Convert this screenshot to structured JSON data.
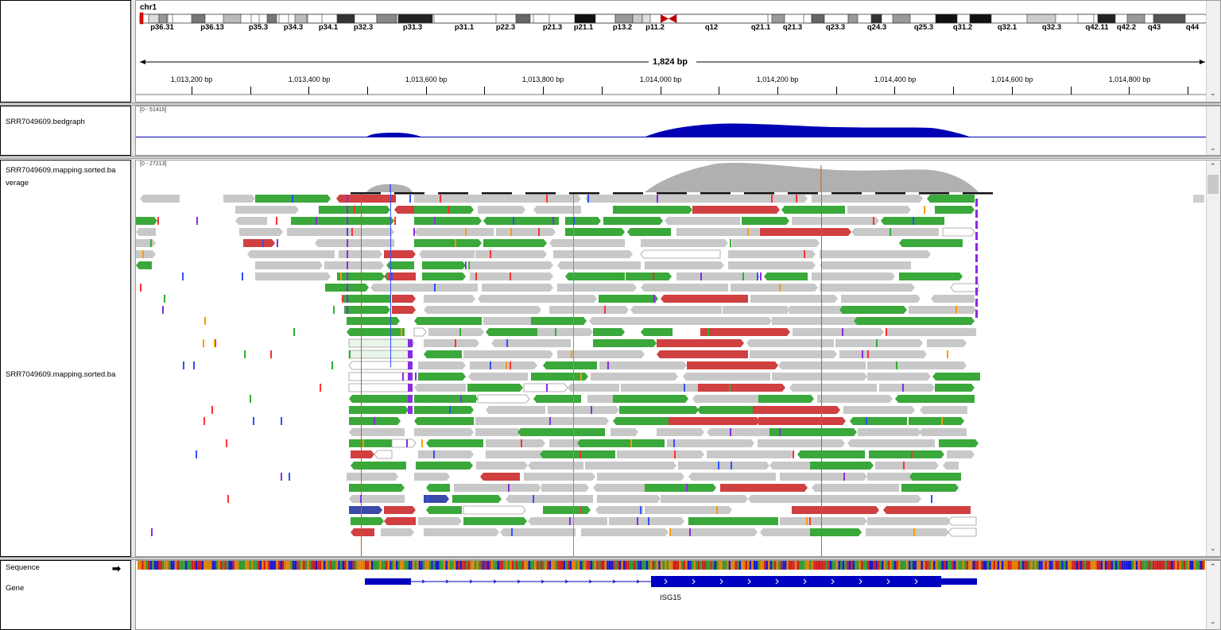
{
  "header": {
    "chromosome": "chr1",
    "span_label": "1,824 bp",
    "cytobands": [
      "p36.31",
      "p36.13",
      "p35.3",
      "p34.3",
      "p34.1",
      "p32.3",
      "p31.3",
      "p31.1",
      "p22.3",
      "p21.3",
      "p21.1",
      "p13.2",
      "p11.2",
      "q12",
      "q21.1",
      "q21.3",
      "q23.3",
      "q24.3",
      "q25.3",
      "q31.2",
      "q32.1",
      "q32.3",
      "q42.11",
      "q42.2",
      "q43",
      "q44"
    ],
    "ruler_ticks": [
      "1,013,200 bp",
      "1,013,400 bp",
      "1,013,600 bp",
      "1,013,800 bp",
      "1,014,000 bp",
      "1,014,200 bp",
      "1,014,400 bp",
      "1,014,600 bp",
      "1,014,800 bp"
    ]
  },
  "tracks": {
    "bedgraph": {
      "name": "SRR7049609.bedgraph",
      "range": "[0 - 51415]"
    },
    "coverage": {
      "name": "SRR7049609.mapping.sorted.ba\nverage",
      "name_line1": "SRR7049609.mapping.sorted.ba",
      "name_line2": "verage",
      "range": "[0 - 27213]"
    },
    "alignments": {
      "name": "SRR7049609.mapping.sorted.ba"
    },
    "sequence": {
      "name": "Sequence"
    },
    "gene": {
      "name": "Gene",
      "gene_label": "ISG15"
    }
  },
  "colors": {
    "read_gray": "#c8c8c8",
    "read_green": "#3aa83a",
    "read_red": "#d04040",
    "read_blue": "#3a4aa8",
    "bedgraph": "#0000b4",
    "gene": "#0000c0",
    "coverage": "#b0b0b0"
  }
}
